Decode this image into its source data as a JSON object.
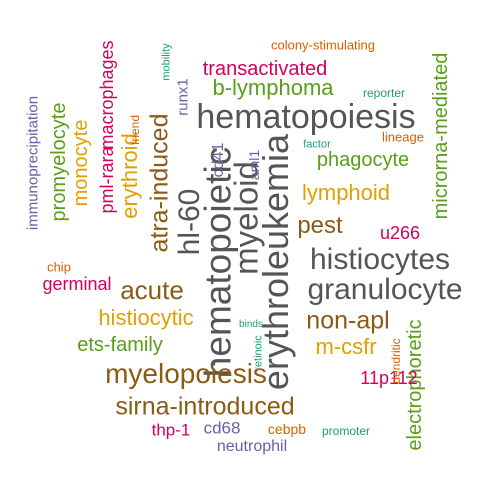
{
  "palette": {
    "gray": "#555555",
    "brown": "#8B5A14",
    "gold": "#E0A000",
    "magenta": "#D4005C",
    "green": "#5A9E1A",
    "purple": "#6B5FA8",
    "orange": "#D95F02",
    "teal": "#1B9E77"
  },
  "words": [
    {
      "text": "hematopoiesis",
      "color": "gray"
    },
    {
      "text": "hematopoietic",
      "color": "gray"
    },
    {
      "text": "erythroleukemia",
      "color": "gray"
    },
    {
      "text": "myeloid",
      "color": "gray"
    },
    {
      "text": "histiocytes",
      "color": "gray"
    },
    {
      "text": "granulocyte",
      "color": "gray"
    },
    {
      "text": "hl-60",
      "color": "gray"
    },
    {
      "text": "myelopoiesis",
      "color": "brown"
    },
    {
      "text": "sirna-introduced",
      "color": "brown"
    },
    {
      "text": "non-apl",
      "color": "brown"
    },
    {
      "text": "acute",
      "color": "brown"
    },
    {
      "text": "atra-induced",
      "color": "brown"
    },
    {
      "text": "pest",
      "color": "brown"
    },
    {
      "text": "lymphoid",
      "color": "gold"
    },
    {
      "text": "histiocytic",
      "color": "gold"
    },
    {
      "text": "m-csfr",
      "color": "gold"
    },
    {
      "text": "erythroid",
      "color": "gold"
    },
    {
      "text": "monocyte",
      "color": "gold"
    },
    {
      "text": "b-lymphoma",
      "color": "green"
    },
    {
      "text": "phagocyte",
      "color": "green"
    },
    {
      "text": "ets-family",
      "color": "green"
    },
    {
      "text": "promyelocyte",
      "color": "green"
    },
    {
      "text": "microrna-mediated",
      "color": "green"
    },
    {
      "text": "electrophoretic",
      "color": "green"
    },
    {
      "text": "transactivated",
      "color": "magenta"
    },
    {
      "text": "macrophages",
      "color": "magenta"
    },
    {
      "text": "pml-rara",
      "color": "magenta"
    },
    {
      "text": "germinal",
      "color": "magenta"
    },
    {
      "text": "u266",
      "color": "magenta"
    },
    {
      "text": "11p112",
      "color": "magenta"
    },
    {
      "text": "thp-1",
      "color": "magenta"
    },
    {
      "text": "cd68",
      "color": "purple"
    },
    {
      "text": "neutrophil",
      "color": "purple"
    },
    {
      "text": "cd41",
      "color": "purple"
    },
    {
      "text": "runx1",
      "color": "purple"
    },
    {
      "text": "aml1",
      "color": "purple"
    },
    {
      "text": "immunoprecipitation",
      "color": "purple"
    },
    {
      "text": "colony-stimulating",
      "color": "orange"
    },
    {
      "text": "friend",
      "color": "orange"
    },
    {
      "text": "lineage",
      "color": "orange"
    },
    {
      "text": "chip",
      "color": "orange"
    },
    {
      "text": "cebpb",
      "color": "orange"
    },
    {
      "text": "dendritic",
      "color": "orange"
    },
    {
      "text": "reporter",
      "color": "teal"
    },
    {
      "text": "mobility",
      "color": "teal"
    },
    {
      "text": "factor",
      "color": "teal"
    },
    {
      "text": "binds",
      "color": "teal"
    },
    {
      "text": "retinoic",
      "color": "teal"
    },
    {
      "text": "promoter",
      "color": "teal"
    }
  ]
}
